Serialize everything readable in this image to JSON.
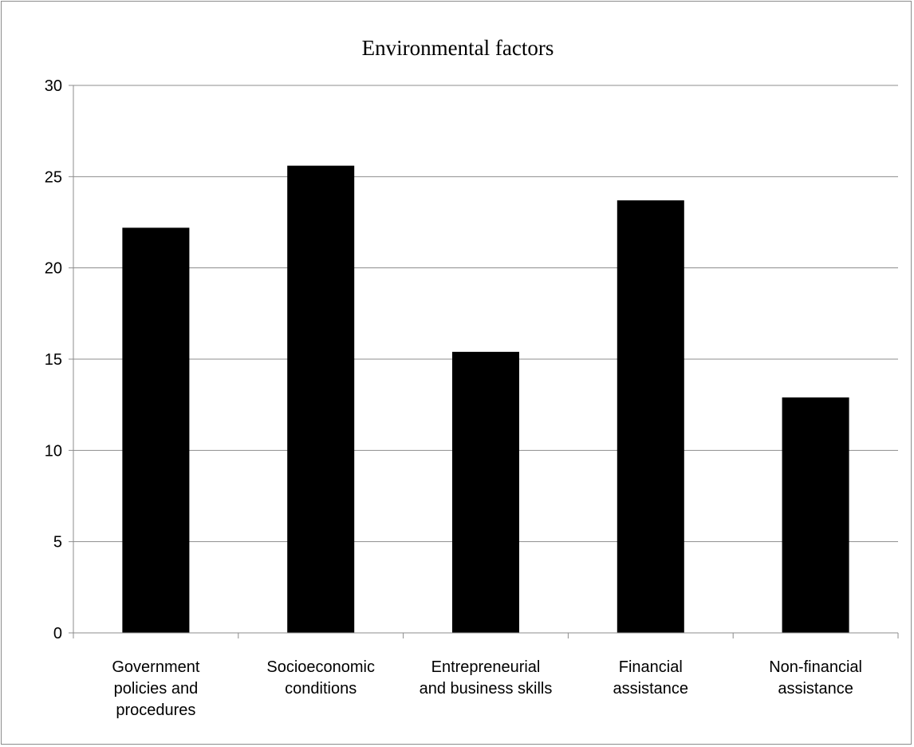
{
  "chart_data": {
    "type": "bar",
    "title": "Environmental factors",
    "xlabel": "",
    "ylabel": "",
    "categories": [
      "Government policies and procedures",
      "Socioeconomic conditions",
      "Entrepreneurial and business skills",
      "Financial assistance",
      "Non-financial assistance"
    ],
    "category_label_lines": [
      [
        "Government",
        "policies and",
        "procedures"
      ],
      [
        "Socioeconomic",
        "conditions"
      ],
      [
        "Entrepreneurial",
        "and business skills"
      ],
      [
        "Financial",
        "assistance"
      ],
      [
        "Non-financial",
        "assistance"
      ]
    ],
    "values": [
      22.2,
      25.6,
      15.4,
      23.7,
      12.9
    ],
    "ylim": [
      0,
      30
    ],
    "yticks": [
      0,
      5,
      10,
      15,
      20,
      25,
      30
    ],
    "grid": true,
    "legend": "none",
    "bar_color": "#000000",
    "grid_color": "#8c8c8c"
  }
}
